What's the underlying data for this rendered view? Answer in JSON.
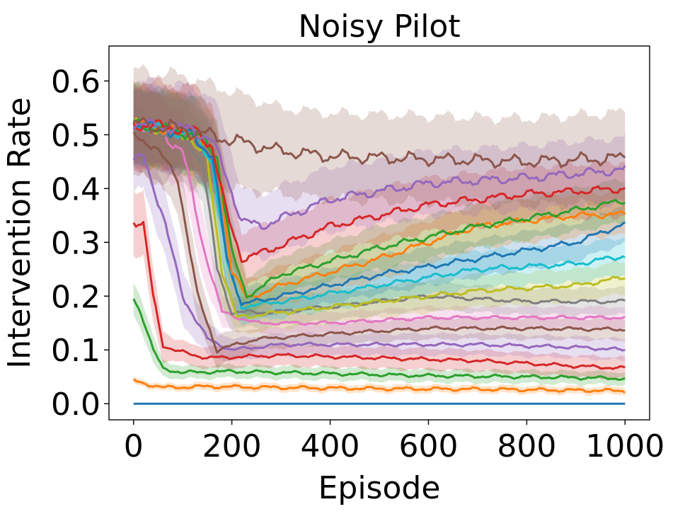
{
  "chart_data": {
    "type": "line",
    "title": "Noisy Pilot",
    "xlabel": "Episode",
    "ylabel": "Intervention Rate",
    "xlim": [
      -50,
      1050
    ],
    "ylim": [
      -0.03,
      0.665
    ],
    "xticks": [
      0,
      200,
      400,
      600,
      800,
      1000
    ],
    "xtick_labels": [
      "0",
      "200",
      "400",
      "600",
      "800",
      "1000"
    ],
    "yticks": [
      0.0,
      0.1,
      0.2,
      0.3,
      0.4,
      0.5,
      0.6
    ],
    "ytick_labels": [
      "0.0",
      "0.1",
      "0.2",
      "0.3",
      "0.4",
      "0.5",
      "0.6"
    ],
    "grid": false,
    "legend": "none",
    "shaded_band": "mean ± spread",
    "series": [
      {
        "color": "#1f77b4",
        "x": [
          0,
          1000
        ],
        "y": [
          0.0,
          0.0
        ],
        "band": [
          0.0,
          0.0
        ]
      },
      {
        "color": "#ff7f0e",
        "x": [
          0,
          20,
          60,
          150,
          300,
          500,
          700,
          900,
          1000
        ],
        "y": [
          0.043,
          0.038,
          0.03,
          0.032,
          0.03,
          0.028,
          0.027,
          0.025,
          0.024
        ],
        "band": [
          0.006,
          0.006,
          0.006,
          0.007,
          0.007,
          0.007,
          0.007,
          0.007,
          0.007
        ]
      },
      {
        "color": "#2ca02c",
        "x": [
          0,
          15,
          40,
          60,
          100,
          200,
          400,
          600,
          800,
          1000
        ],
        "y": [
          0.195,
          0.17,
          0.1,
          0.065,
          0.058,
          0.06,
          0.056,
          0.052,
          0.05,
          0.047
        ],
        "band": [
          0.03,
          0.03,
          0.025,
          0.015,
          0.012,
          0.012,
          0.012,
          0.012,
          0.012,
          0.012
        ]
      },
      {
        "color": "#d62728",
        "x": [
          0,
          20,
          40,
          60,
          80,
          150,
          300,
          500,
          700,
          900,
          1000
        ],
        "y": [
          0.34,
          0.33,
          0.2,
          0.11,
          0.1,
          0.085,
          0.09,
          0.085,
          0.08,
          0.07,
          0.066
        ],
        "band": [
          0.06,
          0.06,
          0.05,
          0.03,
          0.02,
          0.02,
          0.02,
          0.02,
          0.02,
          0.02,
          0.02
        ]
      },
      {
        "color": "#9467bd",
        "x": [
          0,
          20,
          60,
          100,
          150,
          200,
          300,
          500,
          700,
          900,
          1000
        ],
        "y": [
          0.45,
          0.46,
          0.35,
          0.2,
          0.12,
          0.1,
          0.11,
          0.11,
          0.11,
          0.105,
          0.1
        ],
        "band": [
          0.06,
          0.06,
          0.06,
          0.05,
          0.03,
          0.02,
          0.02,
          0.02,
          0.02,
          0.02,
          0.02
        ]
      },
      {
        "color": "#8c564b",
        "x": [
          0,
          40,
          90,
          130,
          170,
          250,
          400,
          600,
          800,
          1000
        ],
        "y": [
          0.5,
          0.48,
          0.42,
          0.2,
          0.1,
          0.12,
          0.13,
          0.14,
          0.14,
          0.138
        ],
        "band": [
          0.06,
          0.06,
          0.06,
          0.05,
          0.03,
          0.02,
          0.02,
          0.02,
          0.02,
          0.02
        ]
      },
      {
        "color": "#e377c2",
        "x": [
          0,
          60,
          100,
          140,
          180,
          250,
          400,
          600,
          800,
          1000
        ],
        "y": [
          0.52,
          0.5,
          0.47,
          0.3,
          0.17,
          0.15,
          0.15,
          0.16,
          0.16,
          0.16
        ],
        "band": [
          0.07,
          0.07,
          0.07,
          0.06,
          0.03,
          0.02,
          0.02,
          0.02,
          0.02,
          0.02
        ]
      },
      {
        "color": "#7f7f7f",
        "x": [
          0,
          100,
          140,
          170,
          200,
          280,
          400,
          600,
          800,
          1000
        ],
        "y": [
          0.52,
          0.5,
          0.45,
          0.25,
          0.17,
          0.17,
          0.18,
          0.2,
          0.19,
          0.19
        ],
        "band": [
          0.07,
          0.07,
          0.07,
          0.06,
          0.03,
          0.025,
          0.025,
          0.025,
          0.025,
          0.025
        ]
      },
      {
        "color": "#bcbd22",
        "x": [
          0,
          110,
          150,
          180,
          210,
          300,
          500,
          700,
          900,
          1000
        ],
        "y": [
          0.52,
          0.5,
          0.45,
          0.25,
          0.16,
          0.17,
          0.19,
          0.21,
          0.22,
          0.235
        ],
        "band": [
          0.07,
          0.07,
          0.07,
          0.06,
          0.03,
          0.03,
          0.03,
          0.03,
          0.03,
          0.03
        ]
      },
      {
        "color": "#17becf",
        "x": [
          0,
          120,
          160,
          190,
          220,
          300,
          500,
          700,
          900,
          1000
        ],
        "y": [
          0.52,
          0.5,
          0.45,
          0.26,
          0.18,
          0.19,
          0.22,
          0.25,
          0.26,
          0.275
        ],
        "band": [
          0.07,
          0.07,
          0.07,
          0.06,
          0.03,
          0.03,
          0.03,
          0.035,
          0.035,
          0.035
        ]
      },
      {
        "color": "#1f77b4",
        "x": [
          0,
          120,
          160,
          190,
          220,
          300,
          500,
          700,
          900,
          1000
        ],
        "y": [
          0.52,
          0.5,
          0.46,
          0.27,
          0.185,
          0.2,
          0.24,
          0.27,
          0.3,
          0.335
        ],
        "band": [
          0.07,
          0.07,
          0.07,
          0.06,
          0.03,
          0.03,
          0.035,
          0.035,
          0.035,
          0.035
        ]
      },
      {
        "color": "#ff7f0e",
        "x": [
          0,
          130,
          170,
          200,
          230,
          300,
          500,
          700,
          900,
          1000
        ],
        "y": [
          0.52,
          0.5,
          0.45,
          0.25,
          0.195,
          0.22,
          0.27,
          0.33,
          0.35,
          0.352
        ],
        "band": [
          0.07,
          0.07,
          0.07,
          0.06,
          0.035,
          0.035,
          0.04,
          0.04,
          0.04,
          0.04
        ]
      },
      {
        "color": "#2ca02c",
        "x": [
          0,
          130,
          170,
          200,
          230,
          300,
          500,
          700,
          900,
          1000
        ],
        "y": [
          0.52,
          0.5,
          0.46,
          0.28,
          0.2,
          0.24,
          0.29,
          0.33,
          0.36,
          0.378
        ],
        "band": [
          0.07,
          0.07,
          0.07,
          0.06,
          0.035,
          0.035,
          0.04,
          0.04,
          0.04,
          0.04
        ]
      },
      {
        "color": "#d62728",
        "x": [
          0,
          120,
          160,
          190,
          220,
          260,
          400,
          600,
          800,
          1000
        ],
        "y": [
          0.52,
          0.51,
          0.48,
          0.35,
          0.27,
          0.28,
          0.33,
          0.37,
          0.39,
          0.4
        ],
        "band": [
          0.08,
          0.08,
          0.08,
          0.07,
          0.05,
          0.05,
          0.05,
          0.05,
          0.05,
          0.05
        ]
      },
      {
        "color": "#9467bd",
        "x": [
          0,
          120,
          160,
          190,
          220,
          260,
          400,
          600,
          800,
          1000
        ],
        "y": [
          0.52,
          0.51,
          0.49,
          0.42,
          0.34,
          0.33,
          0.38,
          0.41,
          0.42,
          0.435
        ],
        "band": [
          0.08,
          0.08,
          0.08,
          0.08,
          0.06,
          0.06,
          0.06,
          0.06,
          0.06,
          0.06
        ]
      },
      {
        "color": "#8c564b",
        "x": [
          0,
          100,
          200,
          300,
          400,
          600,
          800,
          1000
        ],
        "y": [
          0.52,
          0.51,
          0.49,
          0.47,
          0.46,
          0.455,
          0.45,
          0.457
        ],
        "band": [
          0.1,
          0.1,
          0.09,
          0.08,
          0.08,
          0.08,
          0.08,
          0.085
        ]
      }
    ]
  }
}
